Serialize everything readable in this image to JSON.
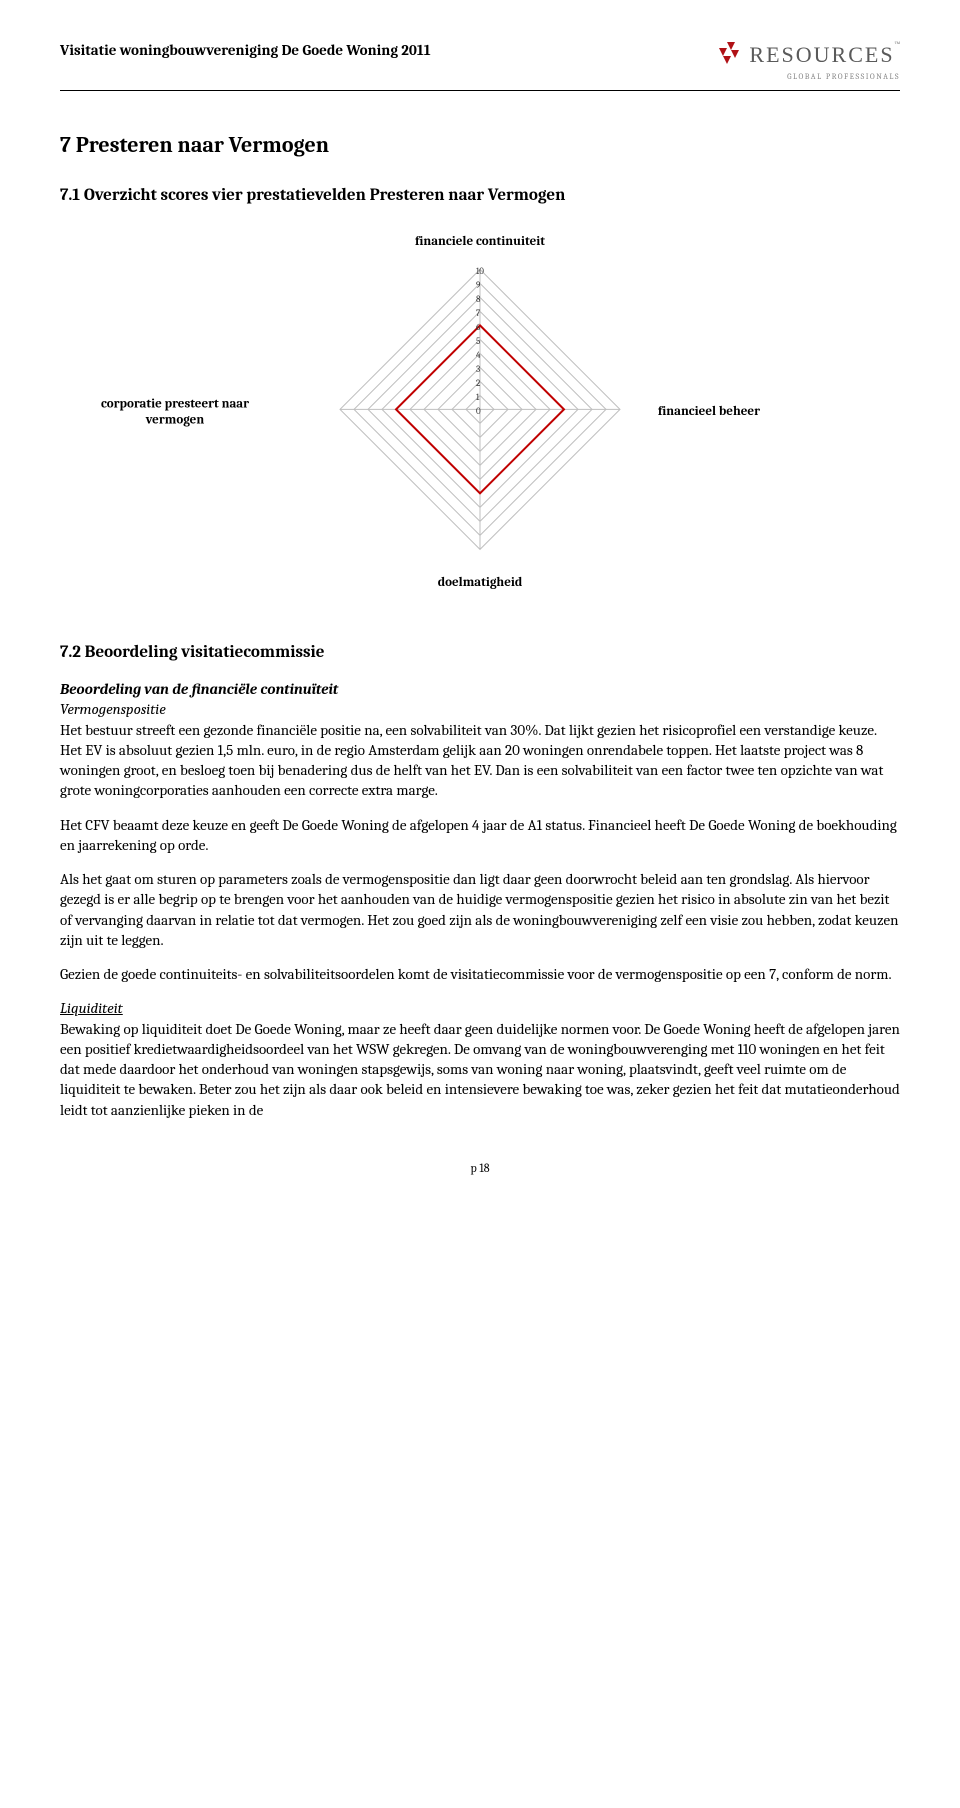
{
  "header": {
    "title": "Visitatie woningbouwvereniging De Goede Woning 2011",
    "logo_text": "RESOURCES",
    "logo_sub": "GLOBAL PROFESSIONALS",
    "logo_tm": "™"
  },
  "section": {
    "h1": "7  Presteren naar Vermogen",
    "h2_1": "7.1 Overzicht scores vier prestatievelden Presteren naar Vermogen",
    "h2_2": "7.2 Beoordeling visitatiecommissie"
  },
  "radar_chart": {
    "type": "radar",
    "axes": [
      "financiele continuiteit",
      "financieel beheer",
      "doelmatigheid",
      "corporatie presteert naar vermogen"
    ],
    "values": [
      6,
      6,
      6,
      6
    ],
    "max": 10,
    "ticks": [
      0,
      1,
      2,
      3,
      4,
      5,
      6,
      7,
      8,
      9,
      10
    ],
    "grid_color": "#bfbfbf",
    "axis_line_color": "#bfbfbf",
    "series_color": "#c00000",
    "series_width": 2,
    "background_color": "#ffffff",
    "label_fontsize": 13,
    "tick_fontsize": 9,
    "diamond_half": 140
  },
  "body": {
    "p1_head": "Beoordeling van de financiële continuïteit",
    "p1_sub": "Vermogenspositie",
    "p1": "Het bestuur streeft een gezonde financiële positie na, een solvabiliteit van 30%. Dat lijkt gezien het risicoprofiel een verstandige keuze. Het EV is absoluut gezien 1,5 mln. euro, in de regio Amsterdam gelijk aan 20 woningen onrendabele toppen. Het laatste project was 8 woningen groot, en besloeg toen bij benadering dus de helft van het EV. Dan is een solvabiliteit van een factor twee ten opzichte van wat grote woningcorporaties aanhouden een correcte extra marge.",
    "p2": "Het CFV beaamt deze keuze en geeft De Goede Woning de afgelopen 4 jaar de A1 status. Financieel heeft De Goede Woning de boekhouding en jaarrekening op orde.",
    "p3": "Als het gaat om sturen op parameters zoals de vermogenspositie dan ligt daar geen doorwrocht beleid aan ten grondslag. Als hiervoor gezegd is er alle begrip op te brengen voor het aanhouden van de huidige vermogenspositie gezien het risico in absolute zin van het bezit of vervanging daarvan in relatie tot dat vermogen. Het zou goed zijn als de woningbouwvereniging zelf een visie zou hebben, zodat keuzen zijn uit te leggen.",
    "p4": "Gezien de goede continuiteits- en solvabiliteitsoordelen komt de visitatiecommissie voor de vermogenspositie op een 7, conform de norm.",
    "p5_head": "Liquiditeit",
    "p5": "Bewaking op liquiditeit doet De Goede Woning, maar ze heeft daar geen duidelijke normen voor. De Goede Woning heeft de afgelopen jaren een positief kredietwaardigheidsoordeel van het WSW gekregen. De omvang van de woningbouwverenging met 110 woningen en het feit dat mede daardoor het onderhoud van woningen stapsgewijs, soms van woning naar woning, plaatsvindt, geeft veel ruimte om de liquiditeit te bewaken. Beter zou het zijn als daar ook beleid en intensievere bewaking toe was, zeker gezien het feit dat mutatieonderhoud leidt tot aanzienlijke pieken in de"
  },
  "footer": {
    "page": "p 18"
  }
}
